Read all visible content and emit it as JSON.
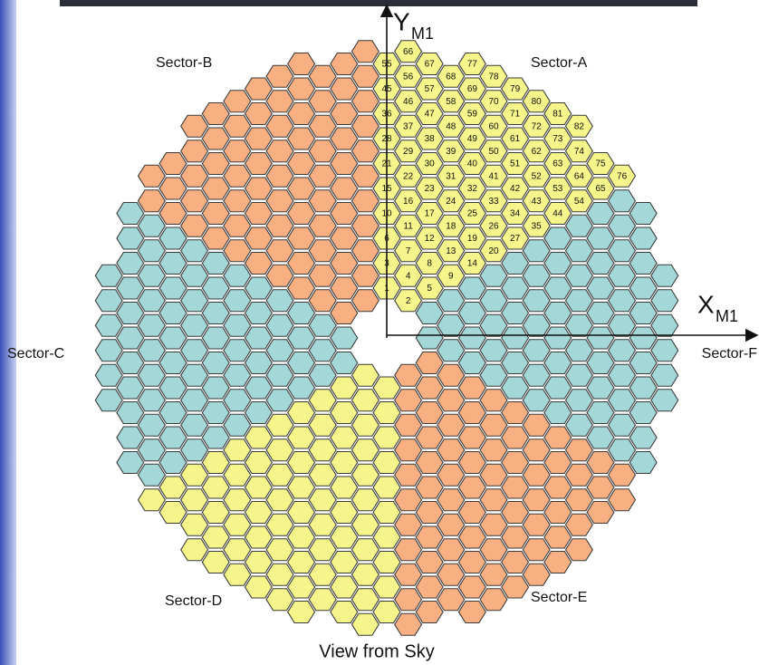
{
  "diagram": {
    "sector_a_segments": [
      "1",
      "2",
      "3",
      "4",
      "5",
      "6",
      "7",
      "8",
      "9",
      "10",
      "11",
      "12",
      "13",
      "14",
      "15",
      "16",
      "17",
      "18",
      "19",
      "20",
      "21",
      "22",
      "23",
      "24",
      "25",
      "26",
      "27",
      "28",
      "29",
      "30",
      "31",
      "32",
      "33",
      "34",
      "35",
      "36",
      "37",
      "38",
      "39",
      "40",
      "41",
      "42",
      "43",
      "44",
      "45",
      "46",
      "47",
      "48",
      "49",
      "50",
      "51",
      "52",
      "53",
      "54",
      "55",
      "56",
      "57",
      "58",
      "59",
      "60",
      "61",
      "62",
      "63",
      "64",
      "65",
      "66",
      "67",
      "68",
      "69",
      "70",
      "71",
      "72",
      "73",
      "74",
      "75",
      "76",
      "77",
      "78",
      "79",
      "80",
      "81",
      "82"
    ],
    "sector_labels": [
      "Sector-A",
      "Sector-B",
      "Sector-C",
      "Sector-D",
      "Sector-E",
      "Sector-F"
    ],
    "y_axis": {
      "letter": "Y",
      "subscript": "M1"
    },
    "x_axis": {
      "letter": "X",
      "subscript": "M1"
    },
    "caption": "View from Sky"
  }
}
